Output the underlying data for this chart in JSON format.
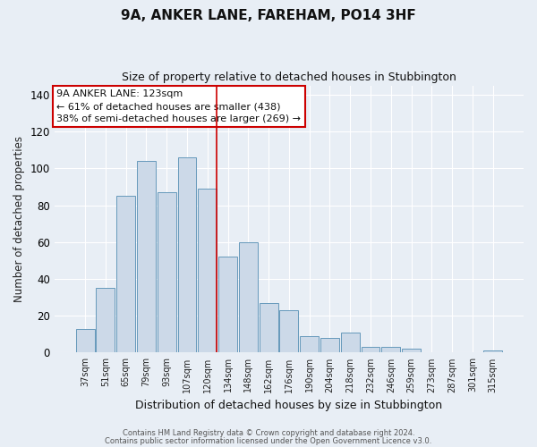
{
  "title": "9A, ANKER LANE, FAREHAM, PO14 3HF",
  "subtitle": "Size of property relative to detached houses in Stubbington",
  "xlabel": "Distribution of detached houses by size in Stubbington",
  "ylabel": "Number of detached properties",
  "bar_labels": [
    "37sqm",
    "51sqm",
    "65sqm",
    "79sqm",
    "93sqm",
    "107sqm",
    "120sqm",
    "134sqm",
    "148sqm",
    "162sqm",
    "176sqm",
    "190sqm",
    "204sqm",
    "218sqm",
    "232sqm",
    "246sqm",
    "259sqm",
    "273sqm",
    "287sqm",
    "301sqm",
    "315sqm"
  ],
  "bar_heights": [
    13,
    35,
    85,
    104,
    87,
    106,
    89,
    52,
    60,
    27,
    23,
    9,
    8,
    11,
    3,
    3,
    2,
    0,
    0,
    0,
    1
  ],
  "bar_color": "#ccd9e8",
  "bar_edge_color": "#6699bb",
  "vline_x_index": 6,
  "vline_color": "#cc0000",
  "ylim": [
    0,
    145
  ],
  "yticks": [
    0,
    20,
    40,
    60,
    80,
    100,
    120,
    140
  ],
  "annotation_title": "9A ANKER LANE: 123sqm",
  "annotation_line1": "← 61% of detached houses are smaller (438)",
  "annotation_line2": "38% of semi-detached houses are larger (269) →",
  "annotation_box_facecolor": "#ffffff",
  "annotation_box_edgecolor": "#cc0000",
  "footer_line1": "Contains HM Land Registry data © Crown copyright and database right 2024.",
  "footer_line2": "Contains public sector information licensed under the Open Government Licence v3.0.",
  "background_color": "#e8eef5",
  "grid_color": "#ffffff",
  "title_fontsize": 11,
  "subtitle_fontsize": 9
}
